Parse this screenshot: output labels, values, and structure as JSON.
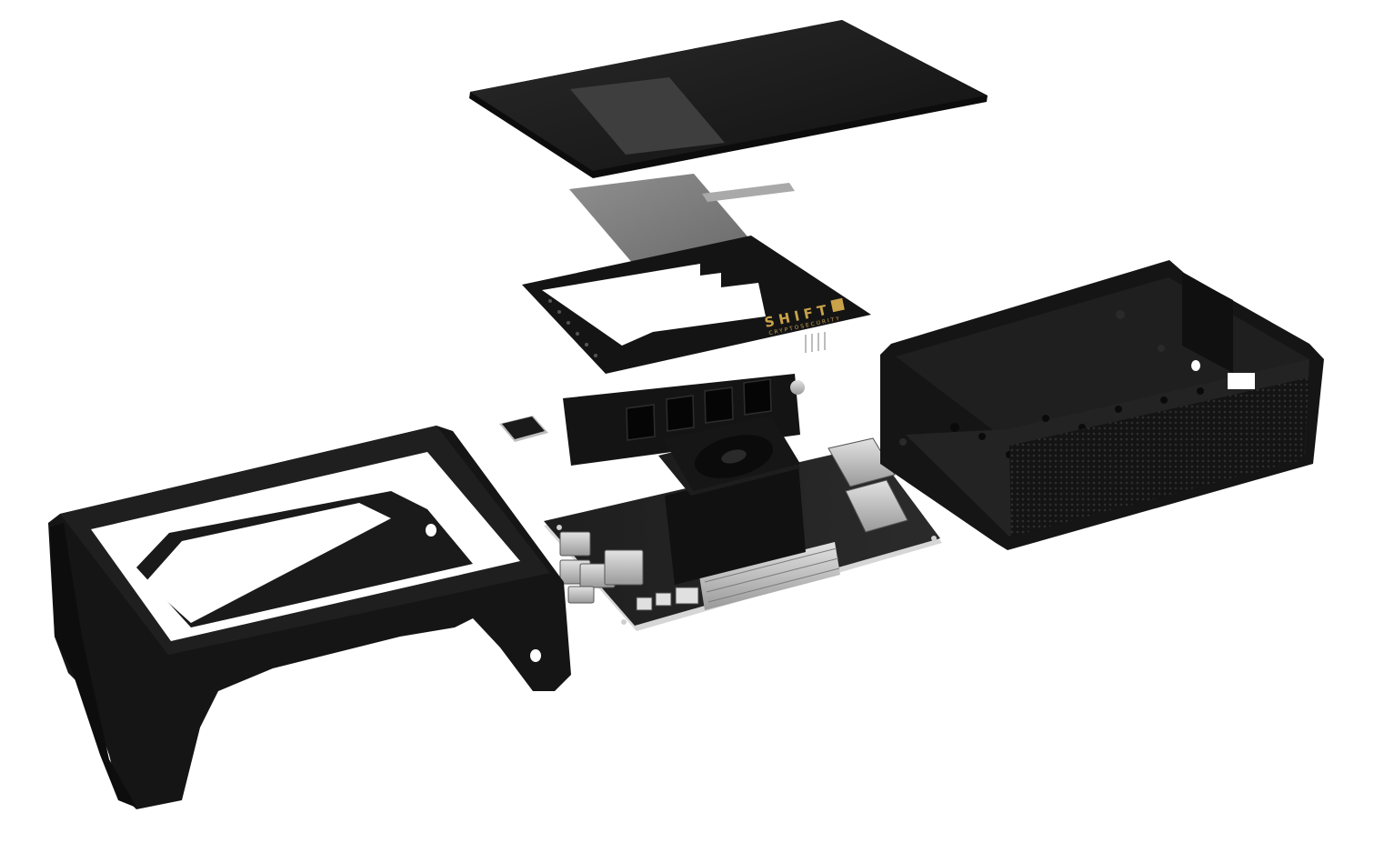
{
  "scene": {
    "background_color": "#ffffff",
    "part_color": "#151515",
    "brand_color": "#c9a24a"
  },
  "logo": {
    "brand": "SHIFT",
    "tagline": "CRYPTOSECURITY"
  }
}
